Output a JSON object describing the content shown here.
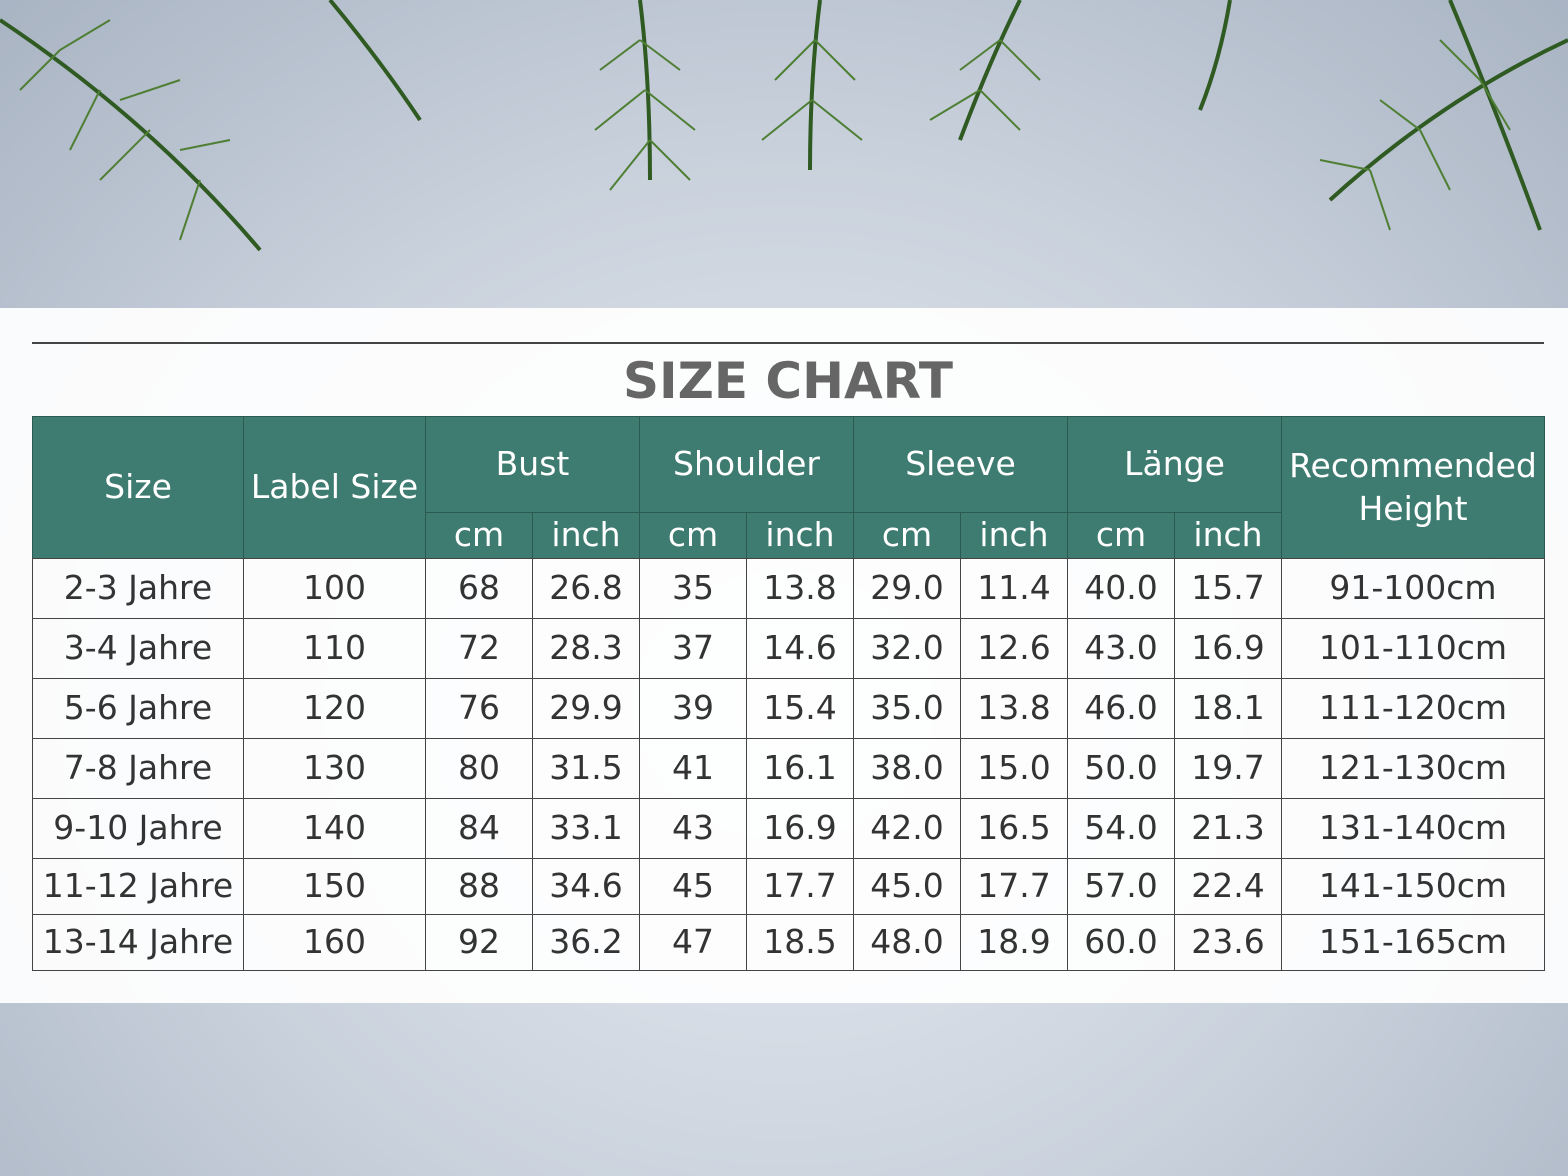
{
  "title": "SIZE CHART",
  "table": {
    "columns": [
      "Size",
      "Label Size",
      "Bust",
      "Shoulder",
      "Sleeve",
      "Länge",
      "Recommended Height"
    ],
    "units": [
      "cm",
      "inch",
      "cm",
      "inch",
      "cm",
      "inch",
      "cm",
      "inch"
    ],
    "rows": [
      [
        "2-3 Jahre",
        "100",
        "68",
        "26.8",
        "35",
        "13.8",
        "29.0",
        "11.4",
        "40.0",
        "15.7",
        "91-100cm"
      ],
      [
        "3-4 Jahre",
        "110",
        "72",
        "28.3",
        "37",
        "14.6",
        "32.0",
        "12.6",
        "43.0",
        "16.9",
        "101-110cm"
      ],
      [
        "5-6 Jahre",
        "120",
        "76",
        "29.9",
        "39",
        "15.4",
        "35.0",
        "13.8",
        "46.0",
        "18.1",
        "111-120cm"
      ],
      [
        "7-8 Jahre",
        "130",
        "80",
        "31.5",
        "41",
        "16.1",
        "38.0",
        "15.0",
        "50.0",
        "19.7",
        "121-130cm"
      ],
      [
        "9-10 Jahre",
        "140",
        "84",
        "33.1",
        "43",
        "16.9",
        "42.0",
        "16.5",
        "54.0",
        "21.3",
        "131-140cm"
      ],
      [
        "11-12 Jahre",
        "150",
        "88",
        "34.6",
        "45",
        "17.7",
        "45.0",
        "17.7",
        "57.0",
        "22.4",
        "141-150cm"
      ],
      [
        "13-14 Jahre",
        "160",
        "92",
        "36.2",
        "47",
        "18.5",
        "48.0",
        "18.9",
        "60.0",
        "23.6",
        "151-165cm"
      ]
    ]
  }
}
